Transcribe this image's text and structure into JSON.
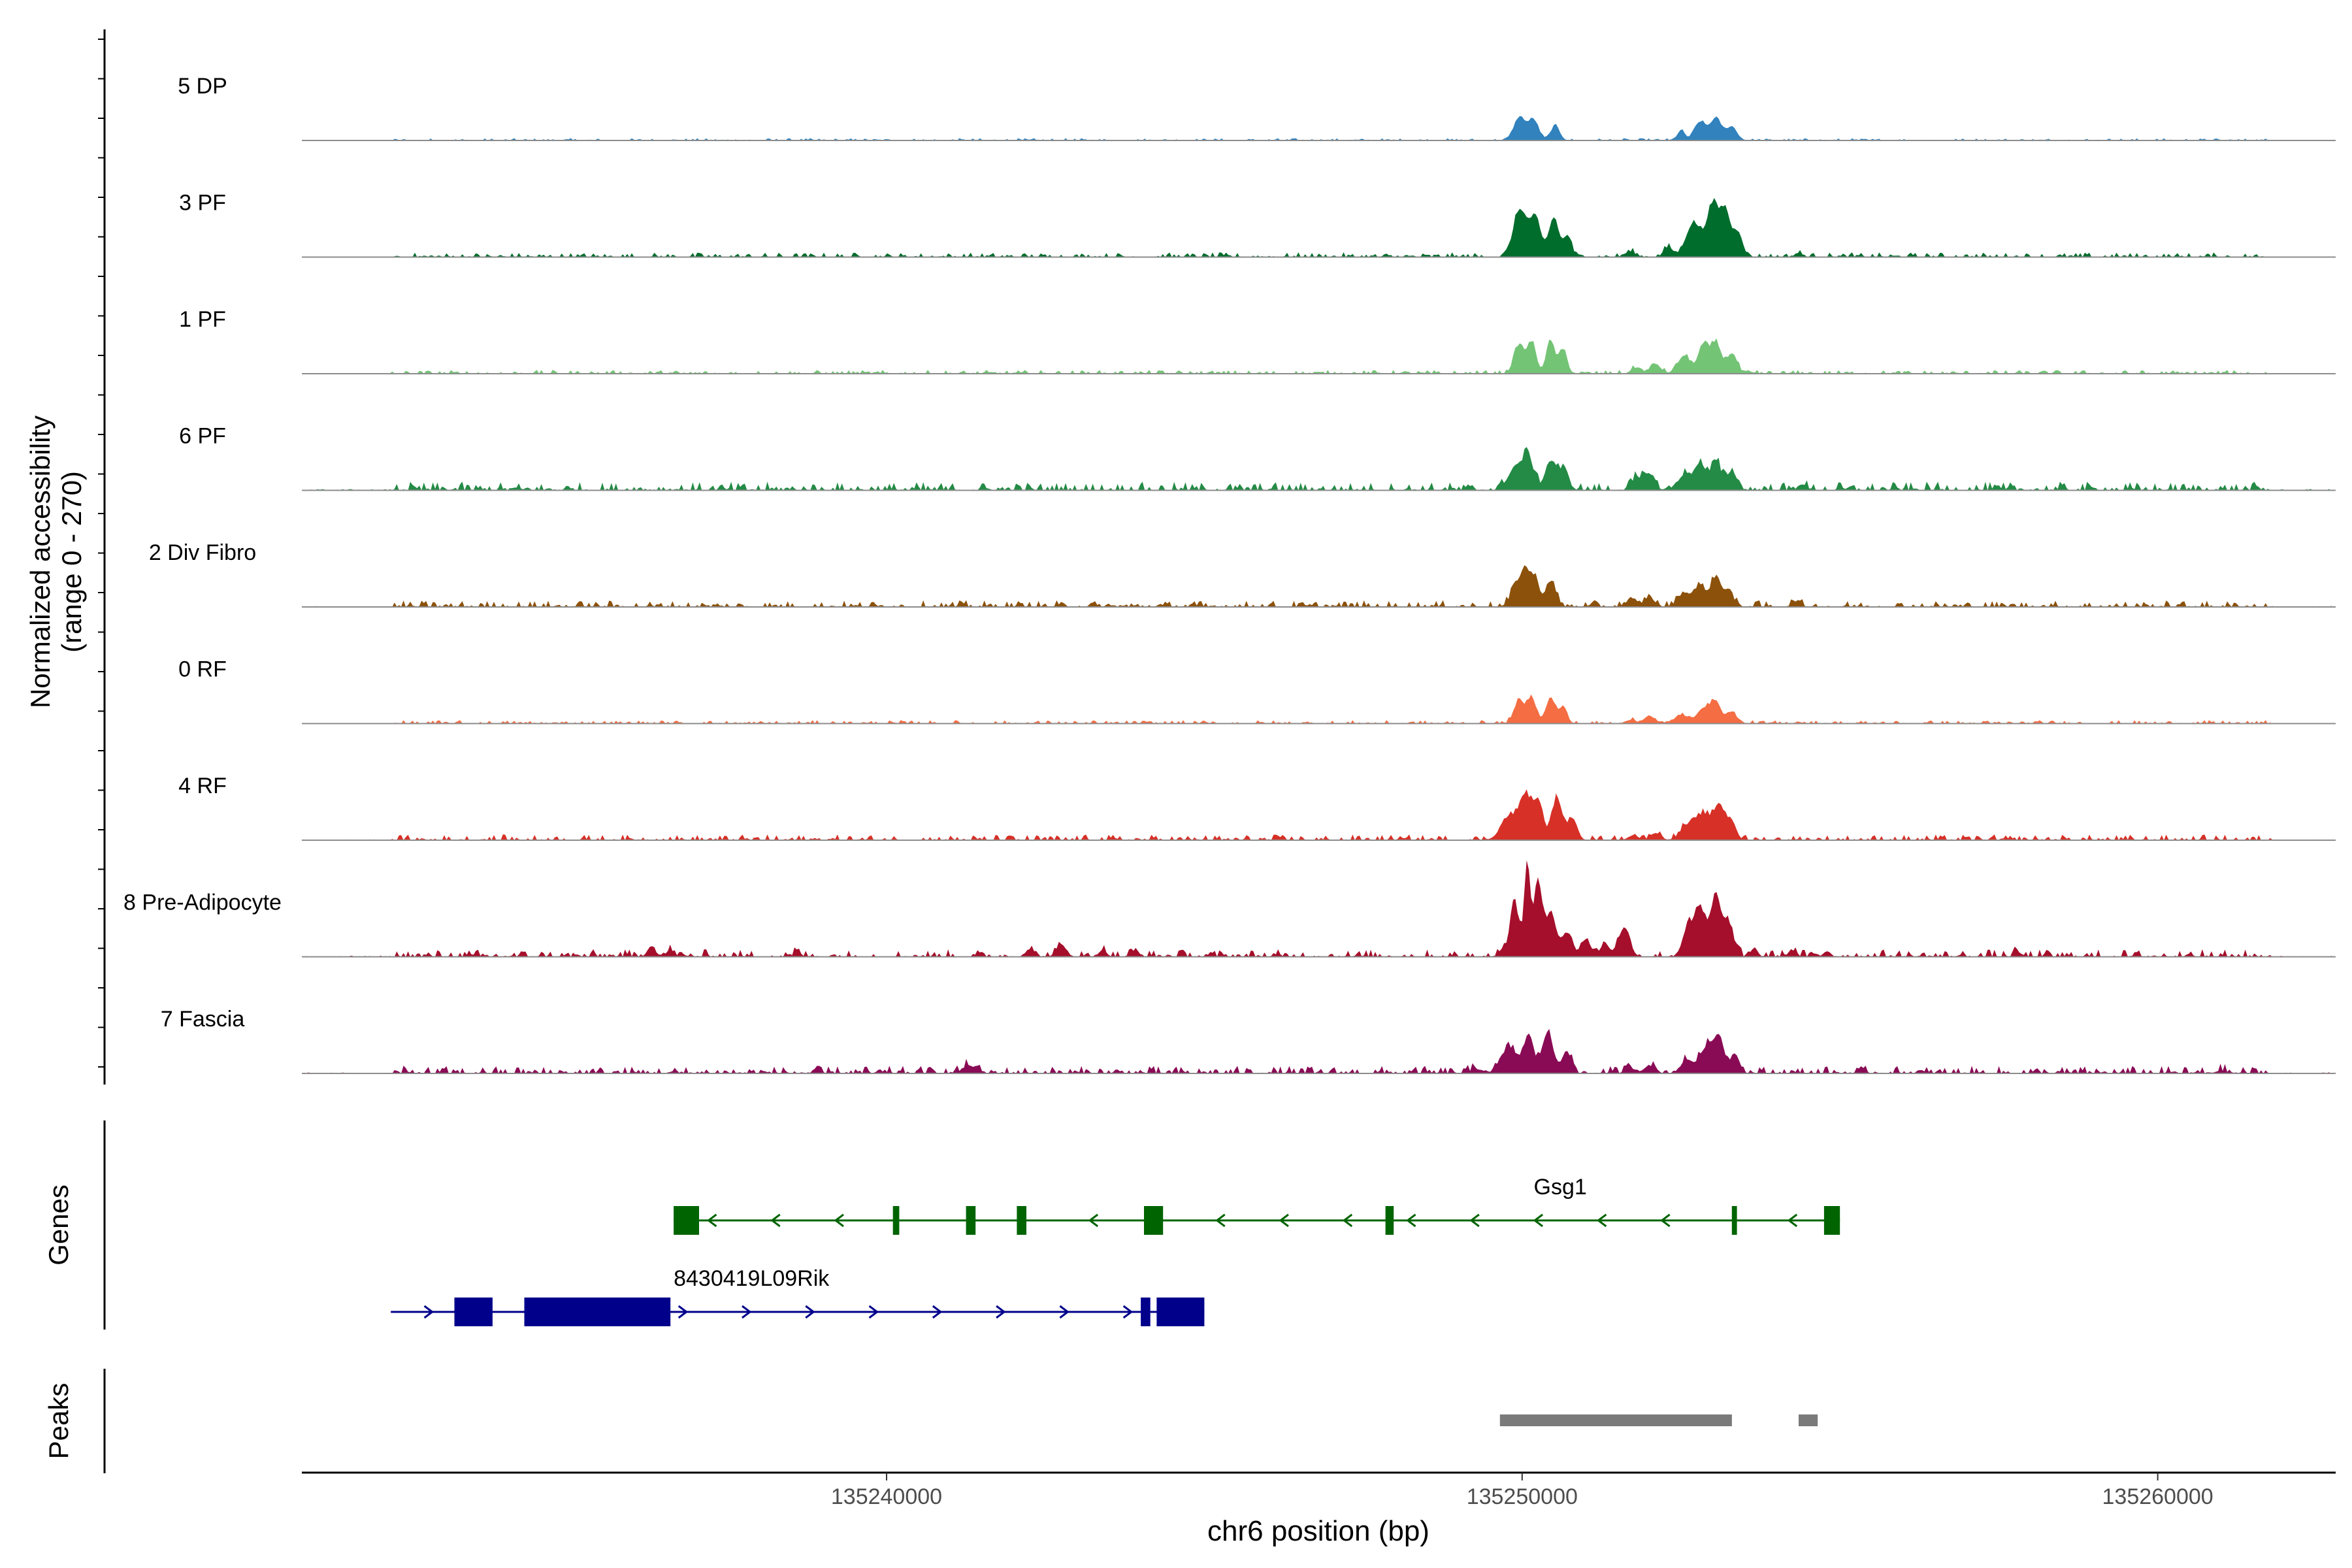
{
  "chart_data": {
    "type": "area",
    "title": "",
    "ylabel": [
      "Normalized accessibility",
      "(range 0 - 270)"
    ],
    "xlabel": "chr6 position (bp)",
    "xlim": [
      135230800,
      135262800
    ],
    "ylim": [
      0,
      270
    ],
    "x_ticks": [
      {
        "value": 135240000,
        "label": "135240000"
      },
      {
        "value": 135250000,
        "label": "135250000"
      },
      {
        "value": 135260000,
        "label": "135260000"
      }
    ],
    "tracks": [
      {
        "name": "5 DP",
        "color": "#3182BD",
        "noise": 0.012,
        "scale": 0.45,
        "peaks": [
          [
            135249960,
            90,
            0.48
          ],
          [
            135250180,
            80,
            0.42
          ],
          [
            135250520,
            70,
            0.3
          ],
          [
            135252500,
            60,
            0.2
          ],
          [
            135252800,
            90,
            0.38
          ],
          [
            135253050,
            90,
            0.45
          ],
          [
            135253300,
            80,
            0.28
          ]
        ]
      },
      {
        "name": "3 PF",
        "color": "#006D2C",
        "noise": 0.025,
        "scale": 0.7,
        "peaks": [
          [
            135249960,
            100,
            0.62
          ],
          [
            135250200,
            90,
            0.5
          ],
          [
            135250500,
            80,
            0.52
          ],
          [
            135250720,
            60,
            0.28
          ],
          [
            135251700,
            80,
            0.07
          ],
          [
            135252300,
            70,
            0.13
          ],
          [
            135252700,
            120,
            0.45
          ],
          [
            135253000,
            90,
            0.68
          ],
          [
            135253200,
            80,
            0.6
          ],
          [
            135253400,
            70,
            0.32
          ],
          [
            135254350,
            60,
            0.05
          ]
        ]
      },
      {
        "name": "1 PF",
        "color": "#74C476",
        "noise": 0.02,
        "scale": 0.55,
        "peaks": [
          [
            135249950,
            80,
            0.48
          ],
          [
            135250150,
            70,
            0.52
          ],
          [
            135250450,
            70,
            0.55
          ],
          [
            135250650,
            60,
            0.4
          ],
          [
            135251800,
            80,
            0.1
          ],
          [
            135252100,
            80,
            0.16
          ],
          [
            135252550,
            100,
            0.3
          ],
          [
            135252850,
            80,
            0.48
          ],
          [
            135253050,
            80,
            0.52
          ],
          [
            135253300,
            80,
            0.34
          ]
        ]
      },
      {
        "name": "6 PF",
        "color": "#238B45",
        "noise": 0.045,
        "scale": 0.55,
        "peaks": [
          [
            135249900,
            120,
            0.38
          ],
          [
            135250100,
            80,
            0.52
          ],
          [
            135250450,
            90,
            0.48
          ],
          [
            135250650,
            80,
            0.3
          ],
          [
            135251800,
            80,
            0.18
          ],
          [
            135252000,
            80,
            0.28
          ],
          [
            135252550,
            100,
            0.25
          ],
          [
            135252800,
            90,
            0.45
          ],
          [
            135253050,
            80,
            0.47
          ],
          [
            135253300,
            80,
            0.32
          ],
          [
            135254400,
            60,
            0.1
          ]
        ]
      },
      {
        "name": "2 Div Fibro",
        "color": "#8C510A",
        "noise": 0.035,
        "scale": 0.5,
        "peaks": [
          [
            135249900,
            80,
            0.38
          ],
          [
            135250050,
            70,
            0.62
          ],
          [
            135250200,
            70,
            0.5
          ],
          [
            135250450,
            80,
            0.48
          ],
          [
            135251700,
            90,
            0.1
          ],
          [
            135252000,
            80,
            0.18
          ],
          [
            135252550,
            100,
            0.25
          ],
          [
            135252800,
            90,
            0.38
          ],
          [
            135253050,
            80,
            0.55
          ],
          [
            135253250,
            70,
            0.3
          ],
          [
            135254300,
            60,
            0.1
          ]
        ]
      },
      {
        "name": "0 RF",
        "color": "#F46D43",
        "noise": 0.018,
        "scale": 0.4,
        "peaks": [
          [
            135249950,
            80,
            0.52
          ],
          [
            135250150,
            70,
            0.6
          ],
          [
            135250450,
            80,
            0.58
          ],
          [
            135250650,
            60,
            0.36
          ],
          [
            135251700,
            80,
            0.08
          ],
          [
            135252000,
            80,
            0.18
          ],
          [
            135252500,
            100,
            0.2
          ],
          [
            135252850,
            100,
            0.35
          ],
          [
            135253050,
            80,
            0.5
          ],
          [
            135253300,
            70,
            0.28
          ],
          [
            135254350,
            50,
            0.04
          ]
        ]
      },
      {
        "name": "4 RF",
        "color": "#D73027",
        "noise": 0.03,
        "scale": 0.55,
        "peaks": [
          [
            135249800,
            130,
            0.4
          ],
          [
            135250050,
            90,
            0.7
          ],
          [
            135250250,
            80,
            0.62
          ],
          [
            135250550,
            80,
            0.72
          ],
          [
            135250800,
            70,
            0.36
          ],
          [
            135251750,
            80,
            0.08
          ],
          [
            135252100,
            80,
            0.12
          ],
          [
            135252600,
            110,
            0.25
          ],
          [
            135252850,
            100,
            0.42
          ],
          [
            135253100,
            90,
            0.6
          ],
          [
            135253300,
            70,
            0.3
          ]
        ]
      },
      {
        "name": "8 Pre-Adipocyte",
        "color": "#A50F2B",
        "noise": 0.04,
        "scale": 1.0,
        "peaks": [
          [
            135236300,
            60,
            0.1
          ],
          [
            135236600,
            60,
            0.06
          ],
          [
            135238600,
            50,
            0.05
          ],
          [
            135242250,
            60,
            0.07
          ],
          [
            135242750,
            80,
            0.09
          ],
          [
            135243400,
            60,
            0.06
          ],
          [
            135243900,
            60,
            0.05
          ],
          [
            135249700,
            60,
            0.08
          ],
          [
            135249880,
            60,
            0.55
          ],
          [
            135250080,
            50,
            0.88
          ],
          [
            135250250,
            60,
            0.7
          ],
          [
            135250450,
            80,
            0.42
          ],
          [
            135250700,
            80,
            0.22
          ],
          [
            135251000,
            80,
            0.16
          ],
          [
            135251300,
            70,
            0.12
          ],
          [
            135251600,
            90,
            0.26
          ],
          [
            135252600,
            80,
            0.25
          ],
          [
            135252800,
            90,
            0.45
          ],
          [
            135253050,
            80,
            0.55
          ],
          [
            135253250,
            80,
            0.3
          ],
          [
            135253650,
            50,
            0.08
          ],
          [
            135254250,
            60,
            0.06
          ],
          [
            135254800,
            50,
            0.05
          ],
          [
            135257800,
            50,
            0.04
          ],
          [
            135260500,
            50,
            0.03
          ]
        ]
      },
      {
        "name": "7 Fascia",
        "color": "#8A0B55",
        "noise": 0.04,
        "scale": 0.6,
        "peaks": [
          [
            135241300,
            100,
            0.12
          ],
          [
            135249300,
            100,
            0.06
          ],
          [
            135249800,
            120,
            0.4
          ],
          [
            135250100,
            80,
            0.55
          ],
          [
            135250400,
            90,
            0.62
          ],
          [
            135250700,
            70,
            0.35
          ],
          [
            135251700,
            80,
            0.08
          ],
          [
            135252000,
            80,
            0.12
          ],
          [
            135252600,
            100,
            0.2
          ],
          [
            135252900,
            100,
            0.4
          ],
          [
            135253100,
            80,
            0.55
          ],
          [
            135253350,
            70,
            0.3
          ],
          [
            135261000,
            80,
            0.04
          ]
        ]
      }
    ],
    "genes": [
      {
        "name": "Gsg1",
        "color": "#006400",
        "strand": "-",
        "start": 135236650,
        "end": 135255000,
        "exons": [
          [
            135236650,
            135237050
          ],
          [
            135240100,
            135240200
          ],
          [
            135241250,
            135241400
          ],
          [
            135242050,
            135242200
          ],
          [
            135244050,
            135244350
          ],
          [
            135247850,
            135247980
          ],
          [
            135253300,
            135253380
          ],
          [
            135254750,
            135255000
          ]
        ]
      },
      {
        "name": "8430419L09Rik",
        "color": "#00008B",
        "strand": "+",
        "start": 135232200,
        "end": 135245000,
        "exons": [
          [
            135233200,
            135233800
          ],
          [
            135234300,
            135236600
          ],
          [
            135244000,
            135244150
          ],
          [
            135244250,
            135245000
          ]
        ]
      }
    ],
    "peaks": [
      [
        135249650,
        135253300
      ],
      [
        135254350,
        135254650
      ]
    ]
  },
  "panels": {
    "genes_label": "Genes",
    "peaks_label": "Peaks"
  }
}
